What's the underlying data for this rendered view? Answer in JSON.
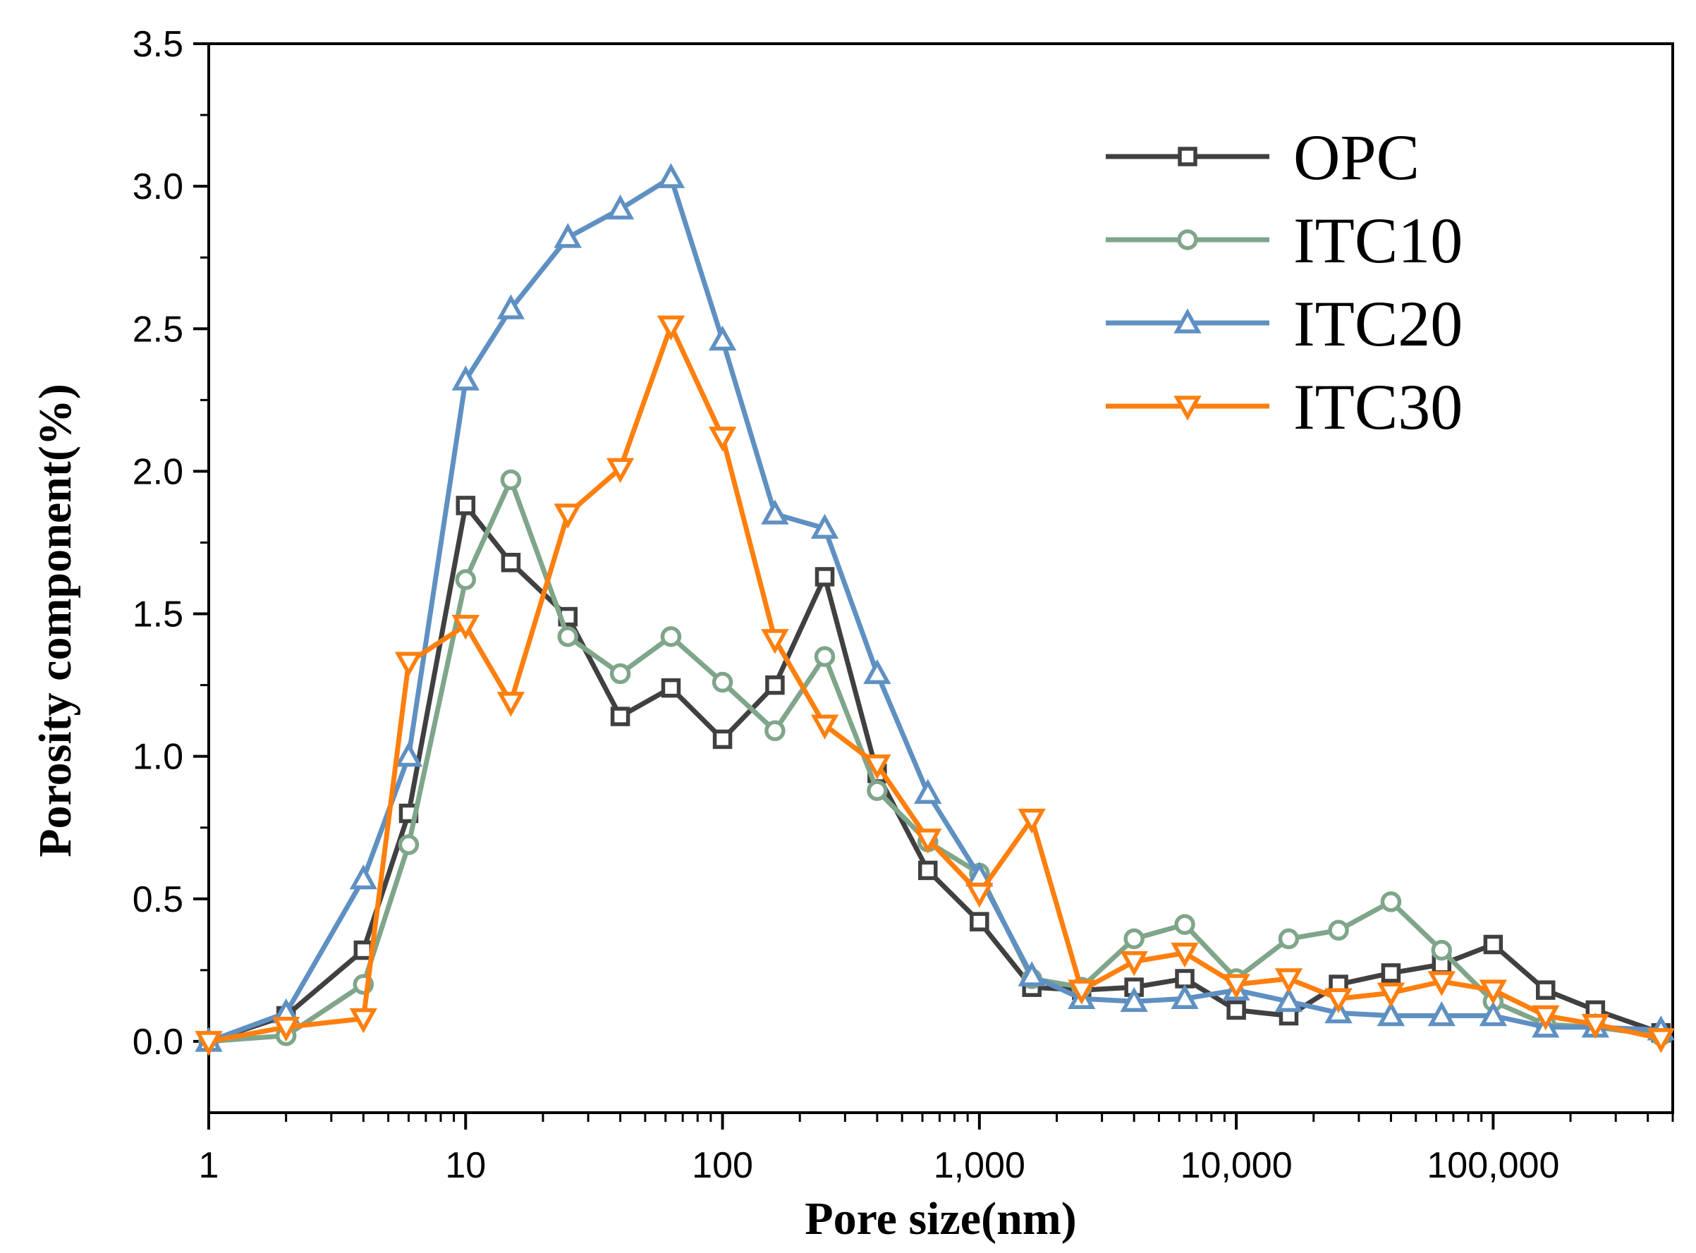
{
  "chart_data": {
    "type": "line",
    "title": "",
    "xlabel": "Pore size(nm)",
    "ylabel": "Porosity component(%)",
    "xscale": "log",
    "xlim": [
      1,
      500000
    ],
    "ylim": [
      -0.25,
      3.5
    ],
    "grid": false,
    "legend_position": "top-right",
    "x_ticks": [
      1,
      10,
      100,
      1000,
      10000,
      100000
    ],
    "x_tick_labels": [
      "1",
      "10",
      "100",
      "1,000",
      "10,000",
      "100,000"
    ],
    "y_ticks": [
      0.0,
      0.5,
      1.0,
      1.5,
      2.0,
      2.5,
      3.0,
      3.5
    ],
    "y_tick_labels": [
      "0.0",
      "0.5",
      "1.0",
      "1.5",
      "2.0",
      "2.5",
      "3.0",
      "3.5"
    ],
    "x": [
      1,
      2,
      4,
      6,
      10,
      15,
      25,
      40,
      63,
      100,
      160,
      250,
      400,
      630,
      1000,
      1600,
      2500,
      4000,
      6300,
      10000,
      16000,
      25000,
      40000,
      63000,
      100000,
      160000,
      250000,
      450000
    ],
    "series": [
      {
        "name": "OPC",
        "marker": "square",
        "color": "#404040",
        "values": [
          0.0,
          0.09,
          0.32,
          0.8,
          1.88,
          1.68,
          1.49,
          1.14,
          1.24,
          1.06,
          1.25,
          1.63,
          0.94,
          0.6,
          0.42,
          0.19,
          0.18,
          0.19,
          0.22,
          0.11,
          0.09,
          0.2,
          0.24,
          0.27,
          0.34,
          0.18,
          0.11,
          0.03
        ]
      },
      {
        "name": "ITC10",
        "marker": "circle",
        "color": "#7fa58a",
        "values": [
          0.0,
          0.02,
          0.2,
          0.69,
          1.62,
          1.97,
          1.42,
          1.29,
          1.42,
          1.26,
          1.09,
          1.35,
          0.88,
          0.7,
          0.59,
          0.22,
          0.19,
          0.36,
          0.41,
          0.22,
          0.36,
          0.39,
          0.49,
          0.32,
          0.14,
          0.06,
          0.05,
          0.02
        ]
      },
      {
        "name": "ITC20",
        "marker": "triangle-up",
        "color": "#5f90c2",
        "values": [
          0.0,
          0.1,
          0.57,
          1.0,
          2.32,
          2.57,
          2.82,
          2.92,
          3.03,
          2.46,
          1.85,
          1.8,
          1.29,
          0.87,
          0.58,
          0.23,
          0.15,
          0.14,
          0.15,
          0.18,
          0.14,
          0.1,
          0.09,
          0.09,
          0.09,
          0.05,
          0.05,
          0.04
        ]
      },
      {
        "name": "ITC30",
        "marker": "triangle-down",
        "color": "#ff7f0e",
        "values": [
          0.0,
          0.05,
          0.08,
          1.33,
          1.46,
          1.19,
          1.85,
          2.01,
          2.51,
          2.12,
          1.41,
          1.11,
          0.97,
          0.71,
          0.52,
          0.78,
          0.18,
          0.28,
          0.31,
          0.2,
          0.22,
          0.15,
          0.17,
          0.21,
          0.18,
          0.09,
          0.06,
          0.01
        ]
      }
    ]
  }
}
